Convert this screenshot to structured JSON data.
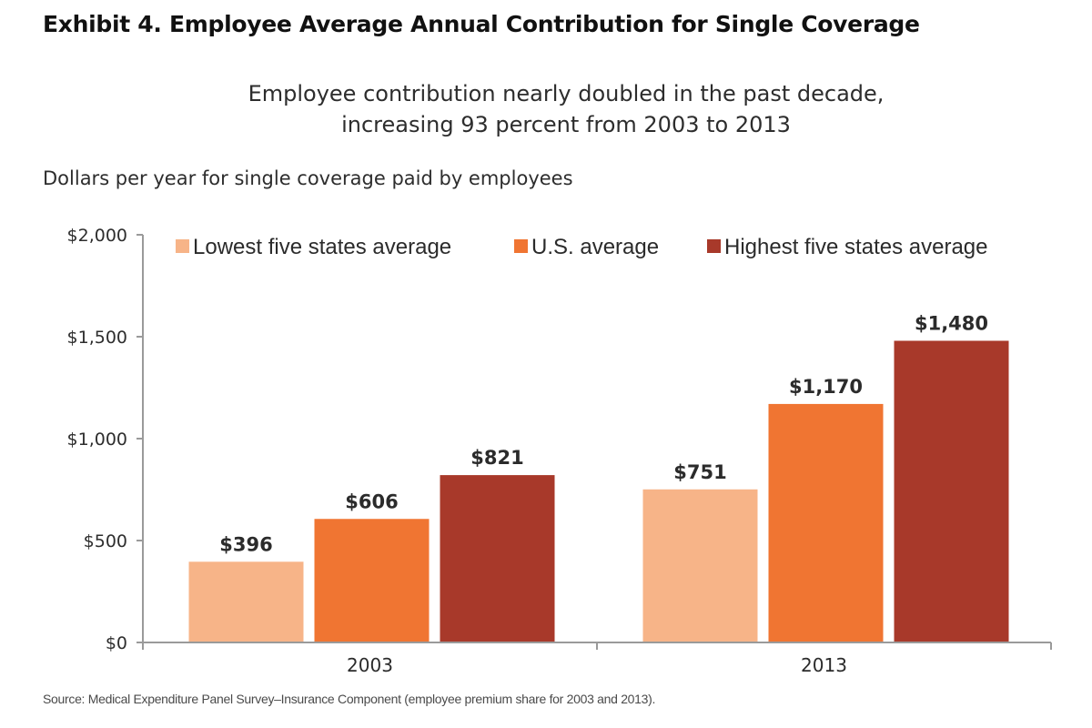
{
  "header": {
    "title": "Exhibit 4. Employee Average Annual Contribution for Single Coverage",
    "subtitle_line1": "Employee contribution nearly doubled in the past decade,",
    "subtitle_line2": "increasing 93 percent from 2003 to 2013"
  },
  "footer": {
    "source": "Source: Medical Expenditure Panel Survey–Insurance Component (employee premium share for 2003 and 2013)."
  },
  "chart_data": {
    "type": "bar",
    "title": "Employee Average Annual Contribution for Single Coverage",
    "ylabel": "Dollars per year for single coverage paid by employees",
    "xlabel": "",
    "categories": [
      "2003",
      "2013"
    ],
    "ylim": [
      0,
      2000
    ],
    "yticks": [
      0,
      500,
      1000,
      1500,
      2000
    ],
    "ytick_labels": [
      "$0",
      "$500",
      "$1,000",
      "$1,500",
      "$2,000"
    ],
    "grid": false,
    "legend_position": "top",
    "series": [
      {
        "name": "Lowest five states average",
        "color": "#f7b488",
        "values": [
          396,
          751
        ],
        "labels": [
          "$396",
          "$751"
        ]
      },
      {
        "name": "U.S. average",
        "color": "#f07532",
        "values": [
          606,
          1170
        ],
        "labels": [
          "$606",
          "$1,170"
        ]
      },
      {
        "name": "Highest five states average",
        "color": "#a8392a",
        "values": [
          821,
          1480
        ],
        "labels": [
          "$821",
          "$1,480"
        ]
      }
    ]
  }
}
